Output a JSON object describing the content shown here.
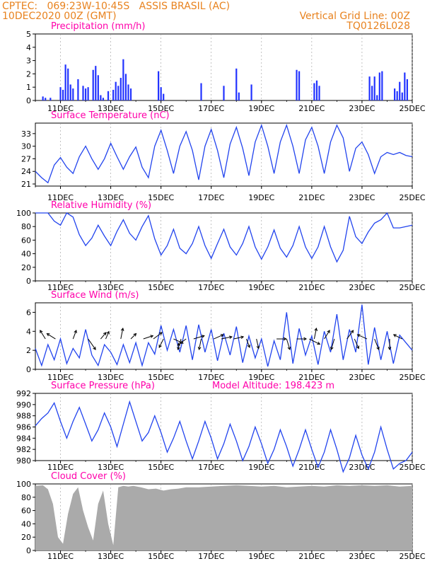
{
  "header": {
    "line1": "CPTEC:   069:23W-10:45S   ASSIS BRASIL (AC)",
    "line2": "10DEC2020 00Z (GMT)",
    "grid_note": "Vertical Grid Line: 00Z",
    "run_id": "TQ0126L028"
  },
  "colors": {
    "header": "#e8821e",
    "panel_title": "#ff00aa",
    "series_line": "#2244ee",
    "precip_bar": "#2233ff",
    "cloud_fill": "#aaaaaa",
    "wind_arrow": "#000000"
  },
  "chart_data": [
    {
      "type": "bar",
      "title": "Precipitation (mm/h)",
      "x_tick_labels": [
        "11DEC",
        "13DEC",
        "15DEC",
        "17DEC",
        "19DEC",
        "21DEC",
        "23DEC",
        "25DEC"
      ],
      "ylim": [
        0,
        5
      ],
      "y_ticks": [
        0,
        1,
        2,
        3,
        4,
        5
      ],
      "x": [
        0.3,
        0.4,
        0.6,
        1.0,
        1.1,
        1.2,
        1.3,
        1.4,
        1.5,
        1.7,
        1.9,
        2.0,
        2.1,
        2.3,
        2.4,
        2.5,
        2.6,
        2.7,
        2.9,
        3.1,
        3.2,
        3.3,
        3.4,
        3.5,
        3.6,
        3.7,
        3.8,
        4.9,
        5.0,
        5.1,
        6.6,
        7.5,
        8.0,
        8.1,
        8.6,
        10.4,
        10.5,
        11.1,
        11.2,
        11.3,
        13.3,
        13.4,
        13.5,
        13.6,
        13.7,
        13.8,
        14.3,
        14.4,
        14.5,
        14.6,
        14.7,
        14.8
      ],
      "values": [
        0.3,
        0.2,
        0.2,
        1.0,
        0.8,
        2.7,
        2.4,
        1.2,
        0.9,
        1.6,
        1.1,
        0.9,
        1.0,
        2.3,
        2.6,
        1.9,
        0.4,
        0.2,
        0.7,
        0.8,
        1.4,
        1.1,
        1.7,
        3.1,
        2.0,
        1.2,
        0.9,
        2.2,
        1.0,
        0.5,
        1.3,
        1.1,
        2.4,
        0.6,
        1.2,
        2.3,
        2.2,
        1.3,
        1.5,
        1.1,
        1.8,
        1.1,
        1.8,
        0.4,
        2.1,
        2.2,
        0.9,
        0.7,
        1.4,
        0.6,
        2.1,
        1.6
      ]
    },
    {
      "type": "line",
      "title": "Surface Temperature (nC)",
      "x_tick_labels": [
        "11DEC",
        "13DEC",
        "15DEC",
        "17DEC",
        "19DEC",
        "21DEC",
        "23DEC",
        "25DEC"
      ],
      "ylim": [
        20.5,
        35.5
      ],
      "y_ticks": [
        21,
        24,
        27,
        30,
        33
      ],
      "x": [
        0,
        0.25,
        0.5,
        0.75,
        1,
        1.25,
        1.5,
        1.75,
        2,
        2.25,
        2.5,
        2.75,
        3,
        3.25,
        3.5,
        3.75,
        4,
        4.25,
        4.5,
        4.75,
        5,
        5.25,
        5.5,
        5.75,
        6,
        6.25,
        6.5,
        6.75,
        7,
        7.25,
        7.5,
        7.75,
        8,
        8.25,
        8.5,
        8.75,
        9,
        9.25,
        9.5,
        9.75,
        10,
        10.25,
        10.5,
        10.75,
        11,
        11.25,
        11.5,
        11.75,
        12,
        12.25,
        12.5,
        12.75,
        13,
        13.25,
        13.5,
        13.75,
        14,
        14.25,
        14.5,
        14.75,
        15
      ],
      "values": [
        24,
        22.5,
        21.3,
        25.5,
        27.3,
        25,
        23.5,
        27.5,
        30,
        27,
        24.5,
        27,
        30.7,
        27.5,
        24.5,
        27.5,
        29.8,
        25,
        22.5,
        30,
        33.8,
        29,
        23.5,
        30,
        33.5,
        29,
        22,
        30,
        34,
        29,
        22.5,
        30.5,
        34.5,
        29.5,
        23,
        31,
        35,
        30,
        23.5,
        31,
        35,
        30,
        23.5,
        31.5,
        34.5,
        30,
        23.5,
        31,
        35,
        32,
        24,
        29.5,
        31,
        28,
        23.5,
        27.5,
        28.5,
        28,
        28.5,
        27.8,
        27.5
      ]
    },
    {
      "type": "line",
      "title": "Relative Humidity (%)",
      "x_tick_labels": [
        "11DEC",
        "13DEC",
        "15DEC",
        "17DEC",
        "19DEC",
        "21DEC",
        "23DEC",
        "25DEC"
      ],
      "ylim": [
        0,
        100
      ],
      "y_ticks": [
        0,
        20,
        40,
        60,
        80,
        100
      ],
      "x": [
        0,
        0.25,
        0.5,
        0.75,
        1,
        1.25,
        1.5,
        1.75,
        2,
        2.25,
        2.5,
        2.75,
        3,
        3.25,
        3.5,
        3.75,
        4,
        4.25,
        4.5,
        4.75,
        5,
        5.25,
        5.5,
        5.75,
        6,
        6.25,
        6.5,
        6.75,
        7,
        7.25,
        7.5,
        7.75,
        8,
        8.25,
        8.5,
        8.75,
        9,
        9.25,
        9.5,
        9.75,
        10,
        10.25,
        10.5,
        10.75,
        11,
        11.25,
        11.5,
        11.75,
        12,
        12.25,
        12.5,
        12.75,
        13,
        13.25,
        13.5,
        13.75,
        14,
        14.25,
        14.5,
        14.75,
        15
      ],
      "values": [
        100,
        100,
        100,
        88,
        82,
        100,
        94,
        68,
        52,
        63,
        82,
        66,
        52,
        73,
        90,
        70,
        60,
        80,
        96,
        62,
        38,
        52,
        76,
        48,
        40,
        55,
        80,
        52,
        33,
        55,
        76,
        50,
        38,
        55,
        80,
        50,
        32,
        50,
        75,
        48,
        35,
        52,
        80,
        50,
        33,
        50,
        80,
        50,
        28,
        45,
        95,
        65,
        55,
        72,
        85,
        90,
        100,
        78,
        78,
        80,
        82
      ]
    },
    {
      "type": "line",
      "title": "Surface Wind (m/s)",
      "x_tick_labels": [
        "11DEC",
        "13DEC",
        "15DEC",
        "17DEC",
        "19DEC",
        "21DEC",
        "23DEC",
        "25DEC"
      ],
      "ylim": [
        0,
        7
      ],
      "y_ticks": [
        0,
        2,
        4,
        6
      ],
      "x": [
        0,
        0.25,
        0.5,
        0.75,
        1,
        1.25,
        1.5,
        1.75,
        2,
        2.25,
        2.5,
        2.75,
        3,
        3.25,
        3.5,
        3.75,
        4,
        4.25,
        4.5,
        4.75,
        5,
        5.25,
        5.5,
        5.75,
        6,
        6.25,
        6.5,
        6.75,
        7,
        7.25,
        7.5,
        7.75,
        8,
        8.25,
        8.5,
        8.75,
        9,
        9.25,
        9.5,
        9.75,
        10,
        10.25,
        10.5,
        10.75,
        11,
        11.25,
        11.5,
        11.75,
        12,
        12.25,
        12.5,
        12.75,
        13,
        13.25,
        13.5,
        13.75,
        14,
        14.25,
        14.5,
        14.75,
        15
      ],
      "values": [
        2.2,
        0.4,
        2.6,
        1.0,
        3.2,
        0.6,
        2.2,
        1.2,
        4.2,
        1.5,
        0.4,
        2.6,
        1.8,
        0.5,
        2.6,
        0.7,
        2.8,
        0.4,
        2.8,
        1.6,
        4.6,
        2.0,
        4.2,
        1.8,
        4.6,
        1.0,
        4.7,
        1.8,
        4.2,
        0.9,
        3.8,
        1.5,
        4.5,
        0.7,
        3.5,
        1.2,
        3.2,
        0.3,
        3.0,
        1.0,
        6.0,
        0.6,
        4.3,
        1.5,
        3.5,
        0.5,
        4.0,
        1.8,
        5.8,
        1.0,
        4.2,
        1.8,
        6.8,
        0.5,
        4.4,
        1.0,
        4.0,
        0.6,
        3.6,
        2.8,
        2.0
      ],
      "arrows": [
        {
          "x": 0.4,
          "u": -0.5,
          "v": 0.8
        },
        {
          "x": 0.8,
          "u": -0.8,
          "v": 0.5
        },
        {
          "x": 1.5,
          "u": 0.3,
          "v": 0.8
        },
        {
          "x": 2.1,
          "u": 0.7,
          "v": -1.0
        },
        {
          "x": 2.6,
          "u": 0.5,
          "v": 0.6
        },
        {
          "x": 2.8,
          "u": 0.3,
          "v": 0.7
        },
        {
          "x": 3.4,
          "u": 0.2,
          "v": 1.0
        },
        {
          "x": 3.8,
          "u": 0.5,
          "v": 0.5
        },
        {
          "x": 4.3,
          "u": 0.9,
          "v": 0.3
        },
        {
          "x": 4.7,
          "u": 0.8,
          "v": 0.6
        },
        {
          "x": 5.1,
          "u": -0.4,
          "v": -0.8
        },
        {
          "x": 5.5,
          "u": 0.9,
          "v": -0.4
        },
        {
          "x": 5.8,
          "u": -0.3,
          "v": -1.0
        },
        {
          "x": 6.0,
          "u": -0.8,
          "v": -0.6
        },
        {
          "x": 6.3,
          "u": 1.0,
          "v": 0.3
        },
        {
          "x": 6.6,
          "u": -0.2,
          "v": -1.0
        },
        {
          "x": 7.1,
          "u": 0.9,
          "v": 0.4
        },
        {
          "x": 7.4,
          "u": 1.0,
          "v": 0.2
        },
        {
          "x": 7.9,
          "u": 0.9,
          "v": 0.2
        },
        {
          "x": 8.4,
          "u": 0.3,
          "v": -0.8
        },
        {
          "x": 8.8,
          "u": 0.2,
          "v": -0.9
        },
        {
          "x": 9.6,
          "u": 0.9,
          "v": 0.0
        },
        {
          "x": 10.0,
          "u": 0.3,
          "v": -1.0
        },
        {
          "x": 10.4,
          "u": 0.9,
          "v": 0.0
        },
        {
          "x": 10.9,
          "u": 1.0,
          "v": -0.5
        },
        {
          "x": 11.1,
          "u": 0.2,
          "v": 1.0
        },
        {
          "x": 11.5,
          "u": 0.5,
          "v": 0.8
        },
        {
          "x": 11.9,
          "u": -0.3,
          "v": -1.0
        },
        {
          "x": 12.4,
          "u": 0.6,
          "v": 0.8
        },
        {
          "x": 12.7,
          "u": 0.4,
          "v": -0.9
        },
        {
          "x": 13.2,
          "u": -0.9,
          "v": 0.4
        },
        {
          "x": 13.5,
          "u": 0.4,
          "v": -1.0
        },
        {
          "x": 14.1,
          "u": 0.0,
          "v": -1.0
        },
        {
          "x": 14.6,
          "u": -0.8,
          "v": 0.4
        }
      ]
    },
    {
      "type": "line",
      "title": "Surface Pressure (hPa)",
      "annotation": "Model Altitude: 198.423 m",
      "x_tick_labels": [
        "11DEC",
        "13DEC",
        "15DEC",
        "17DEC",
        "19DEC",
        "21DEC",
        "23DEC",
        "25DEC"
      ],
      "ylim": [
        980,
        992
      ],
      "y_ticks": [
        980,
        982,
        984,
        986,
        988,
        990,
        992
      ],
      "x": [
        0,
        0.25,
        0.5,
        0.75,
        1,
        1.25,
        1.5,
        1.75,
        2,
        2.25,
        2.5,
        2.75,
        3,
        3.25,
        3.5,
        3.75,
        4,
        4.25,
        4.5,
        4.75,
        5,
        5.25,
        5.5,
        5.75,
        6,
        6.25,
        6.5,
        6.75,
        7,
        7.25,
        7.5,
        7.75,
        8,
        8.25,
        8.5,
        8.75,
        9,
        9.25,
        9.5,
        9.75,
        10,
        10.25,
        10.5,
        10.75,
        11,
        11.25,
        11.5,
        11.75,
        12,
        12.25,
        12.5,
        12.75,
        13,
        13.25,
        13.5,
        13.75,
        14,
        14.25,
        14.5,
        14.75,
        15
      ],
      "values": [
        986.2,
        987.5,
        988.5,
        990.3,
        987.0,
        984.0,
        987.0,
        989.5,
        986.5,
        983.5,
        985.5,
        988.5,
        986.0,
        982.5,
        986.5,
        990.5,
        987.0,
        983.5,
        985.0,
        988.0,
        985.0,
        981.5,
        984.0,
        987.0,
        983.5,
        980.3,
        983.5,
        987.0,
        984.0,
        980.3,
        983.0,
        986.5,
        983.5,
        980.0,
        982.5,
        986.0,
        983.0,
        979.5,
        982.0,
        985.5,
        982.5,
        979.0,
        982.0,
        985.5,
        982.0,
        978.8,
        981.5,
        985.5,
        982.0,
        978.0,
        980.5,
        984.5,
        981.0,
        978.5,
        981.5,
        986.0,
        982.0,
        978.5,
        979.5,
        980.0,
        981.5
      ]
    },
    {
      "type": "area",
      "title": "Cloud Cover (%)",
      "x_tick_labels": [
        "11DEC",
        "13DEC",
        "15DEC",
        "17DEC",
        "19DEC",
        "21DEC",
        "23DEC",
        "25DEC"
      ],
      "ylim": [
        0,
        100
      ],
      "y_ticks": [
        0,
        20,
        40,
        60,
        80,
        100
      ],
      "x": [
        0,
        0.3,
        0.5,
        0.7,
        0.9,
        1.1,
        1.3,
        1.5,
        1.7,
        1.9,
        2.1,
        2.3,
        2.5,
        2.7,
        2.9,
        3.1,
        3.3,
        3.5,
        3.7,
        3.9,
        4.2,
        4.5,
        4.8,
        5.1,
        5.4,
        5.7,
        6.0,
        6.5,
        7.0,
        7.5,
        8.0,
        8.5,
        9.0,
        9.5,
        10.0,
        10.5,
        11.0,
        11.5,
        12.0,
        12.5,
        13.0,
        13.5,
        14.0,
        14.5,
        15.0
      ],
      "values": [
        97,
        98,
        92,
        70,
        20,
        10,
        55,
        85,
        95,
        60,
        35,
        15,
        70,
        90,
        40,
        8,
        95,
        97,
        96,
        97,
        95,
        92,
        93,
        90,
        92,
        93,
        95,
        95,
        96,
        97,
        98,
        97,
        96,
        97,
        95,
        96,
        97,
        96,
        98,
        97,
        98,
        97,
        98,
        96,
        97
      ]
    }
  ]
}
